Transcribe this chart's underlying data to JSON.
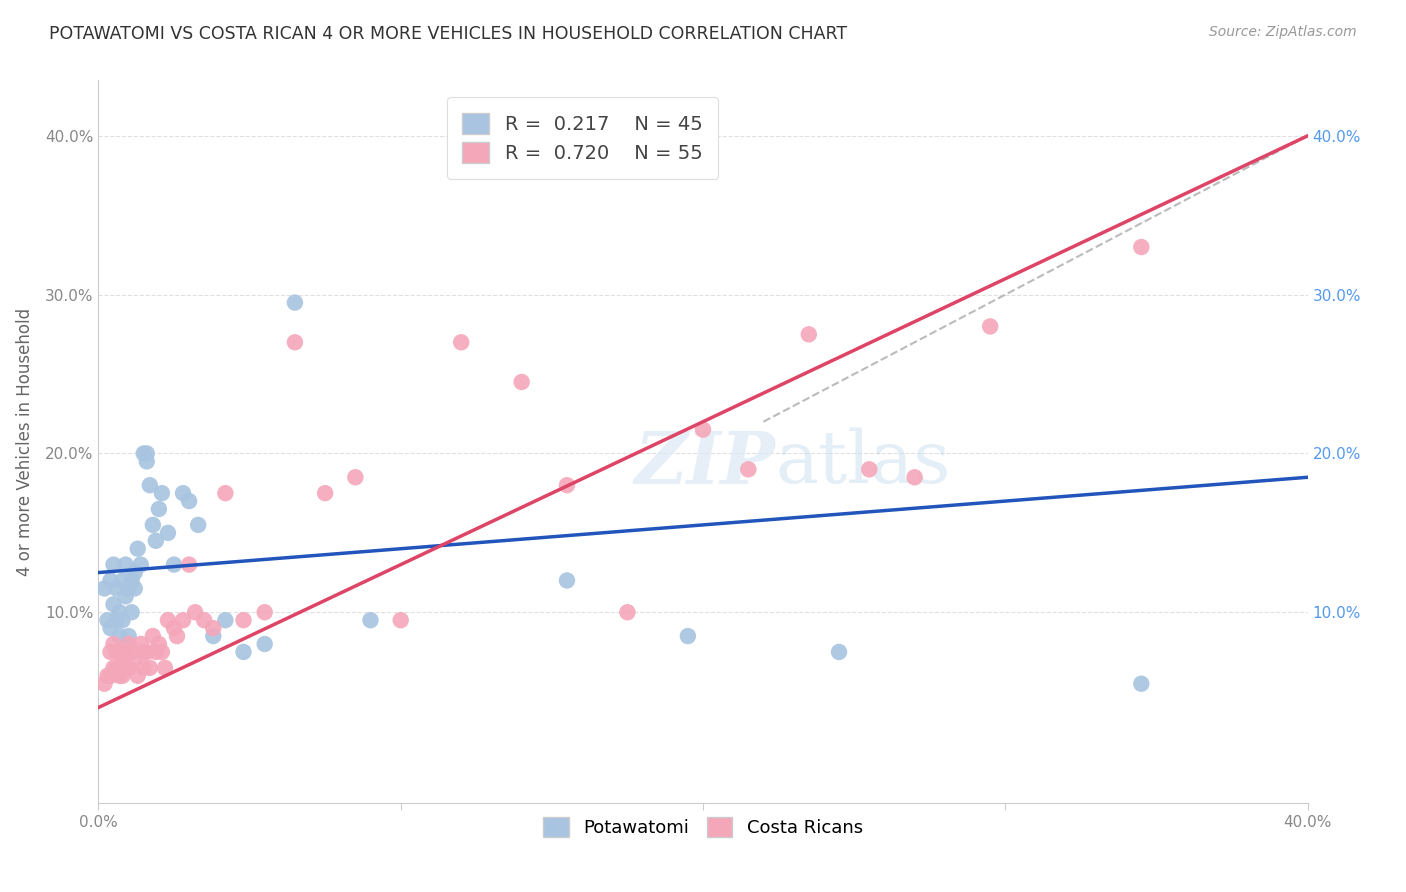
{
  "title": "POTAWATOMI VS COSTA RICAN 4 OR MORE VEHICLES IN HOUSEHOLD CORRELATION CHART",
  "source": "Source: ZipAtlas.com",
  "ylabel": "4 or more Vehicles in Household",
  "xlim": [
    0.0,
    0.4
  ],
  "ylim": [
    -0.02,
    0.435
  ],
  "xticks": [
    0.0,
    0.1,
    0.2,
    0.3,
    0.4
  ],
  "yticks_left": [
    0.1,
    0.2,
    0.3,
    0.4
  ],
  "yticks_right": [
    0.1,
    0.2,
    0.3,
    0.4
  ],
  "xticklabels": [
    "0.0%",
    "",
    "",
    "",
    "40.0%"
  ],
  "yticklabels_left": [
    "10.0%",
    "20.0%",
    "30.0%",
    "40.0%"
  ],
  "yticklabels_right": [
    "10.0%",
    "20.0%",
    "30.0%",
    "40.0%"
  ],
  "potawatomi_R": 0.217,
  "potawatomi_N": 45,
  "costarican_R": 0.72,
  "costarican_N": 55,
  "blue_color": "#a8c4e0",
  "pink_color": "#f4a7b9",
  "blue_line_color": "#2255bb",
  "pink_line_color": "#dd4466",
  "diagonal_color": "#bbbbbb",
  "background_color": "#ffffff",
  "blue_line_start_y": 0.125,
  "blue_line_end_y": 0.185,
  "pink_line_start_y": 0.04,
  "pink_line_end_y": 0.4,
  "potawatomi_x": [
    0.002,
    0.003,
    0.004,
    0.004,
    0.005,
    0.005,
    0.006,
    0.006,
    0.007,
    0.007,
    0.008,
    0.008,
    0.009,
    0.009,
    0.01,
    0.01,
    0.011,
    0.011,
    0.012,
    0.012,
    0.013,
    0.014,
    0.015,
    0.016,
    0.016,
    0.017,
    0.018,
    0.019,
    0.02,
    0.021,
    0.023,
    0.025,
    0.028,
    0.03,
    0.033,
    0.038,
    0.042,
    0.048,
    0.055,
    0.065,
    0.09,
    0.155,
    0.195,
    0.245,
    0.345
  ],
  "potawatomi_y": [
    0.115,
    0.095,
    0.12,
    0.09,
    0.13,
    0.105,
    0.095,
    0.115,
    0.1,
    0.085,
    0.12,
    0.095,
    0.11,
    0.13,
    0.115,
    0.085,
    0.12,
    0.1,
    0.115,
    0.125,
    0.14,
    0.13,
    0.2,
    0.2,
    0.195,
    0.18,
    0.155,
    0.145,
    0.165,
    0.175,
    0.15,
    0.13,
    0.175,
    0.17,
    0.155,
    0.085,
    0.095,
    0.075,
    0.08,
    0.295,
    0.095,
    0.12,
    0.085,
    0.075,
    0.055
  ],
  "costarican_x": [
    0.002,
    0.003,
    0.004,
    0.004,
    0.005,
    0.005,
    0.006,
    0.006,
    0.007,
    0.007,
    0.008,
    0.008,
    0.009,
    0.009,
    0.01,
    0.01,
    0.011,
    0.012,
    0.013,
    0.014,
    0.015,
    0.015,
    0.016,
    0.017,
    0.018,
    0.019,
    0.02,
    0.021,
    0.022,
    0.023,
    0.025,
    0.026,
    0.028,
    0.03,
    0.032,
    0.035,
    0.038,
    0.042,
    0.048,
    0.055,
    0.065,
    0.075,
    0.085,
    0.1,
    0.12,
    0.14,
    0.155,
    0.175,
    0.2,
    0.215,
    0.235,
    0.255,
    0.27,
    0.295,
    0.345
  ],
  "costarican_y": [
    0.055,
    0.06,
    0.075,
    0.06,
    0.08,
    0.065,
    0.065,
    0.075,
    0.075,
    0.06,
    0.07,
    0.06,
    0.075,
    0.065,
    0.08,
    0.065,
    0.075,
    0.07,
    0.06,
    0.08,
    0.075,
    0.065,
    0.075,
    0.065,
    0.085,
    0.075,
    0.08,
    0.075,
    0.065,
    0.095,
    0.09,
    0.085,
    0.095,
    0.13,
    0.1,
    0.095,
    0.09,
    0.175,
    0.095,
    0.1,
    0.27,
    0.175,
    0.185,
    0.095,
    0.27,
    0.245,
    0.18,
    0.1,
    0.215,
    0.19,
    0.275,
    0.19,
    0.185,
    0.28,
    0.33
  ]
}
